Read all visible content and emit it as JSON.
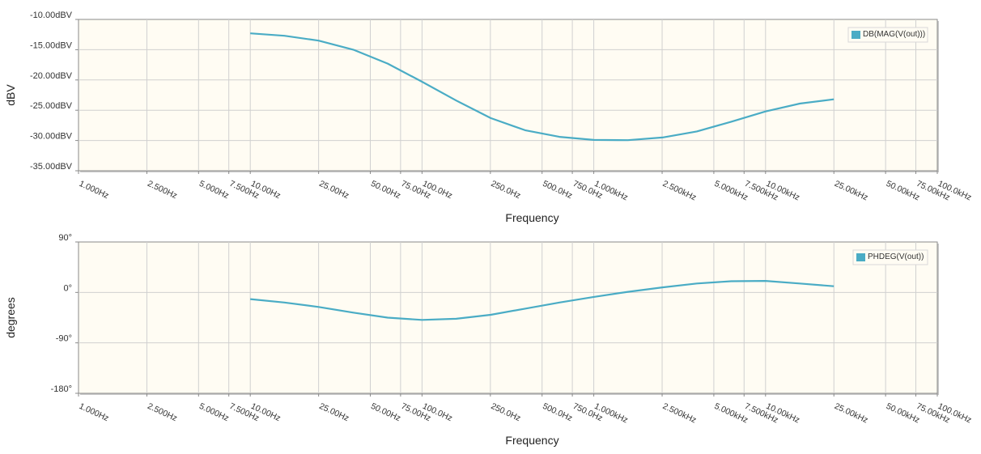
{
  "chart_data": [
    {
      "type": "line",
      "title": "",
      "xlabel": "Frequency",
      "ylabel": "dBV",
      "x_scale": "log",
      "xlim": [
        1,
        100000
      ],
      "ylim": [
        -35,
        -10
      ],
      "x_ticks": [
        1,
        2.5,
        5,
        7.5,
        10,
        25,
        50,
        75,
        100,
        250,
        500,
        750,
        1000,
        2500,
        5000,
        7500,
        10000,
        25000,
        50000,
        75000,
        100000
      ],
      "x_tick_labels": [
        "1.000Hz",
        "2.500Hz",
        "5.000Hz",
        "7.500Hz",
        "10.00Hz",
        "25.00Hz",
        "50.00Hz",
        "75.00Hz",
        "100.0Hz",
        "250.0Hz",
        "500.0Hz",
        "750.0Hz",
        "1.000kHz",
        "2.500kHz",
        "5.000kHz",
        "7.500kHz",
        "10.00kHz",
        "25.00kHz",
        "50.00kHz",
        "75.00kHz",
        "100.0kHz"
      ],
      "y_ticks": [
        -10,
        -15,
        -20,
        -25,
        -30,
        -35
      ],
      "y_tick_labels": [
        "-10.00dBV",
        "-15.00dBV",
        "-20.00dBV",
        "-25.00dBV",
        "-30.00dBV",
        "-35.00dBV"
      ],
      "grid": true,
      "legend_position": "top-right",
      "series": [
        {
          "name": "DB(MAG(V(out)))",
          "color": "#4aacc5",
          "x": [
            10,
            15.8,
            25,
            39.8,
            63.1,
            100,
            158,
            251,
            398,
            631,
            1000,
            1580,
            2510,
            3980,
            6310,
            10000,
            15800,
            25000
          ],
          "y": [
            -12.3,
            -12.7,
            -13.5,
            -15.0,
            -17.3,
            -20.3,
            -23.4,
            -26.3,
            -28.3,
            -29.4,
            -29.9,
            -29.95,
            -29.5,
            -28.5,
            -26.9,
            -25.2,
            -23.9,
            -23.2
          ]
        }
      ]
    },
    {
      "type": "line",
      "title": "",
      "xlabel": "Frequency",
      "ylabel": "degrees",
      "x_scale": "log",
      "xlim": [
        1,
        100000
      ],
      "ylim": [
        -180,
        90
      ],
      "x_ticks": [
        1,
        2.5,
        5,
        7.5,
        10,
        25,
        50,
        75,
        100,
        250,
        500,
        750,
        1000,
        2500,
        5000,
        7500,
        10000,
        25000,
        50000,
        75000,
        100000
      ],
      "x_tick_labels": [
        "1.000Hz",
        "2.500Hz",
        "5.000Hz",
        "7.500Hz",
        "10.00Hz",
        "25.00Hz",
        "50.00Hz",
        "75.00Hz",
        "100.0Hz",
        "250.0Hz",
        "500.0Hz",
        "750.0Hz",
        "1.000kHz",
        "2.500kHz",
        "5.000kHz",
        "7.500kHz",
        "10.00kHz",
        "25.00kHz",
        "50.00kHz",
        "75.00kHz",
        "100.0kHz"
      ],
      "y_ticks": [
        90,
        0,
        -90,
        -180
      ],
      "y_tick_labels": [
        "90°",
        "0°",
        "-90°",
        "-180°"
      ],
      "grid": true,
      "legend_position": "top-right",
      "series": [
        {
          "name": "PHDEG(V(out))",
          "color": "#4aacc5",
          "x": [
            10,
            15.8,
            25,
            39.8,
            63.1,
            100,
            158,
            251,
            398,
            631,
            1000,
            1580,
            2510,
            3980,
            6310,
            10000,
            15800,
            25000
          ],
          "y": [
            -12,
            -18,
            -26,
            -36,
            -45,
            -49,
            -47,
            -40,
            -29,
            -18,
            -8,
            1,
            9,
            16,
            20,
            20.5,
            16,
            11
          ]
        }
      ]
    }
  ]
}
